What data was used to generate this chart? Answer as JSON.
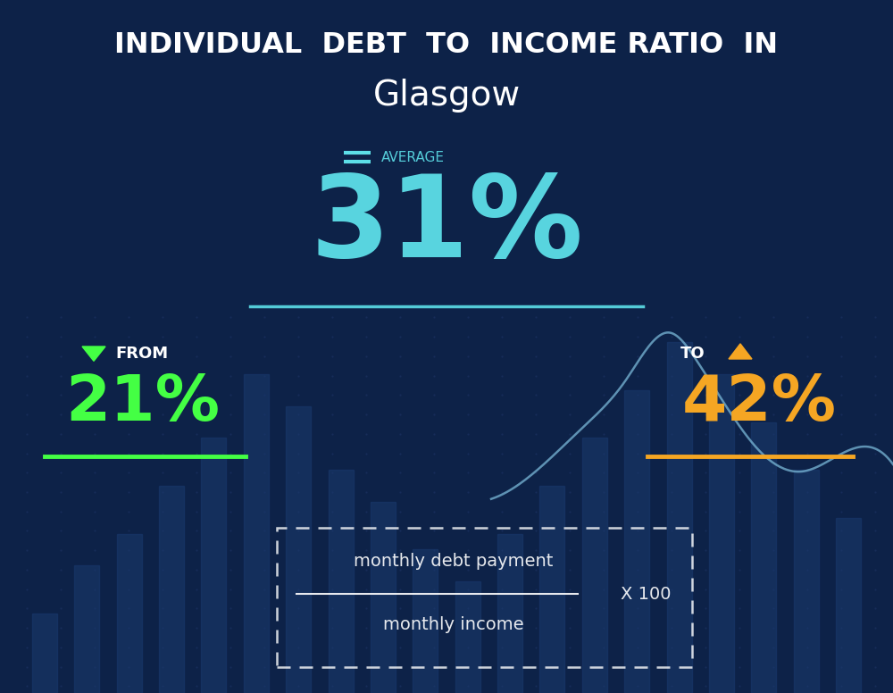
{
  "title_line1": "INDIVIDUAL  DEBT  TO  INCOME RATIO  IN",
  "title_line2": "Glasgow",
  "avg_label": "AVERAGE",
  "avg_value": "31%",
  "from_label": "FROM",
  "from_value": "21%",
  "to_label": "TO",
  "to_value": "42%",
  "formula_top": "monthly debt payment",
  "formula_bottom": "monthly income",
  "formula_multiplier": "X 100",
  "bg_color": "#0d2248",
  "title_color": "#ffffff",
  "avg_color": "#5ddfe8",
  "from_color": "#44ff44",
  "to_color": "#f5a623",
  "formula_color": "#ffffff",
  "underline_avg_color": "#5ddfe8",
  "underline_from_color": "#44ff44",
  "underline_to_color": "#f5a623",
  "line_color": "#7ab8d8",
  "bar_color": "#1a3a6e",
  "dot_color": "#1a3060"
}
